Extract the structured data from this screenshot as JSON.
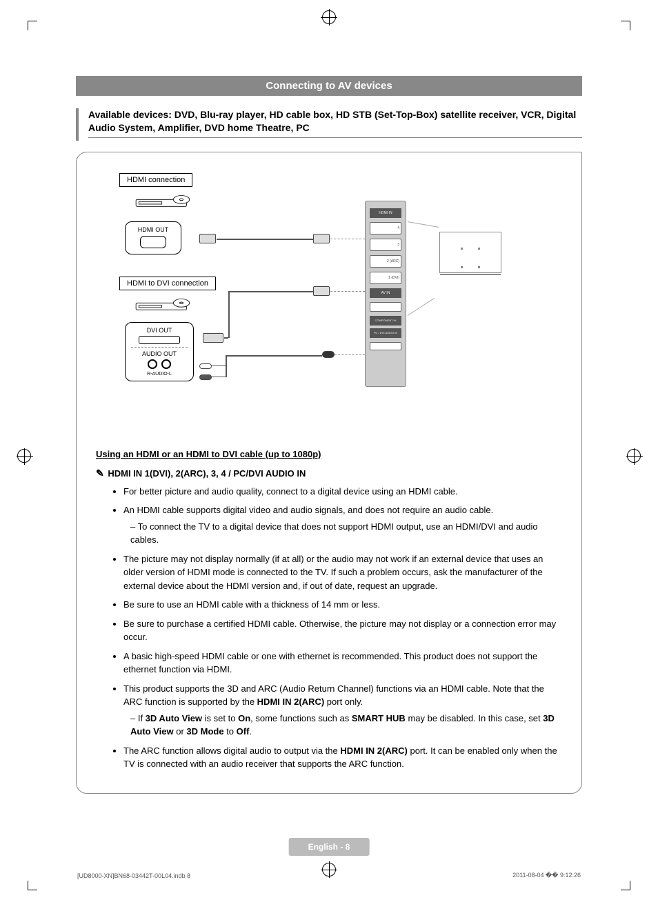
{
  "heading": "Connecting to AV devices",
  "available_devices": "Available devices: DVD, Blu-ray player, HD cable box, HD STB (Set-Top-Box) satellite receiver, VCR, Digital Audio System, Amplifier, DVD home Theatre, PC",
  "diagram": {
    "hdmi_conn_label": "HDMI connection",
    "hdmi_dvi_conn_label": "HDMI to DVI connection",
    "hdmi_out_label": "HDMI OUT",
    "dvi_out_label": "DVI OUT",
    "audio_out_label": "AUDIO OUT",
    "r_audio_l_label": "R-AUDIO-L",
    "panel_labels": {
      "hdmi_in": "HDMI IN",
      "p4": "4",
      "p3": "3",
      "p2": "2 (ARC)",
      "p1": "1 (DVI)",
      "av_in": "AV IN",
      "component_in": "COMPONENT IN",
      "pc_dvi": "PC / DVI AUDIO IN"
    }
  },
  "section_subtitle": "Using an HDMI or an HDMI to DVI cable (up to 1080p)",
  "note_header": "HDMI IN 1(DVI), 2(ARC), 3,  4 / PC/DVI AUDIO IN",
  "bullets": [
    {
      "text": "For better picture and audio quality, connect to a digital device using an HDMI cable."
    },
    {
      "text": "An HDMI cable supports digital video and audio signals, and does not require an audio cable.",
      "sub": [
        "To connect the TV to a digital device that does not support HDMI output, use an HDMI/DVI and audio cables."
      ]
    },
    {
      "text": "The picture may not display normally (if at all) or the audio may not work if an external device that uses an older version of HDMI mode is connected to the TV. If such a problem occurs, ask the manufacturer of the external device about the HDMI version and, if out of date, request an upgrade."
    },
    {
      "text": "Be sure to use an HDMI cable with a thickness of 14 mm or less."
    },
    {
      "text": "Be sure to purchase a certified HDMI cable. Otherwise, the picture may not display or a connection error may occur."
    },
    {
      "text": "A basic high-speed HDMI cable or one with ethernet is recommended. This product does not support the ethernet function via HDMI."
    },
    {
      "html": "This product supports the 3D and ARC (Audio Return Channel) functions via an HDMI cable. Note that the ARC function is supported by the <span class='bold'>HDMI IN 2(ARC)</span> port only.",
      "sub_html": [
        "If <span class='bold'>3D Auto View</span> is set to <span class='bold'>On</span>, some functions such as <span class='bold'>SMART HUB</span> may be disabled. In this case, set <span class='bold'>3D Auto View</span> or <span class='bold'>3D Mode</span> to <span class='bold'>Off</span>."
      ]
    },
    {
      "html": "The ARC function allows digital audio to output via the <span class='bold'>HDMI IN 2(ARC)</span> port. It can be enabled only when the TV is connected with an audio receiver that supports the ARC function."
    }
  ],
  "page_footer": "English - 8",
  "footer_left": "[UD8000-XN]BN68-03442T-00L04.indb   8",
  "footer_right": "2011-08-04   �� 9:12:26",
  "colors": {
    "heading_bg": "#888888",
    "heading_text": "#ffffff",
    "footer_bg": "#bbbbbb",
    "text": "#000000"
  }
}
